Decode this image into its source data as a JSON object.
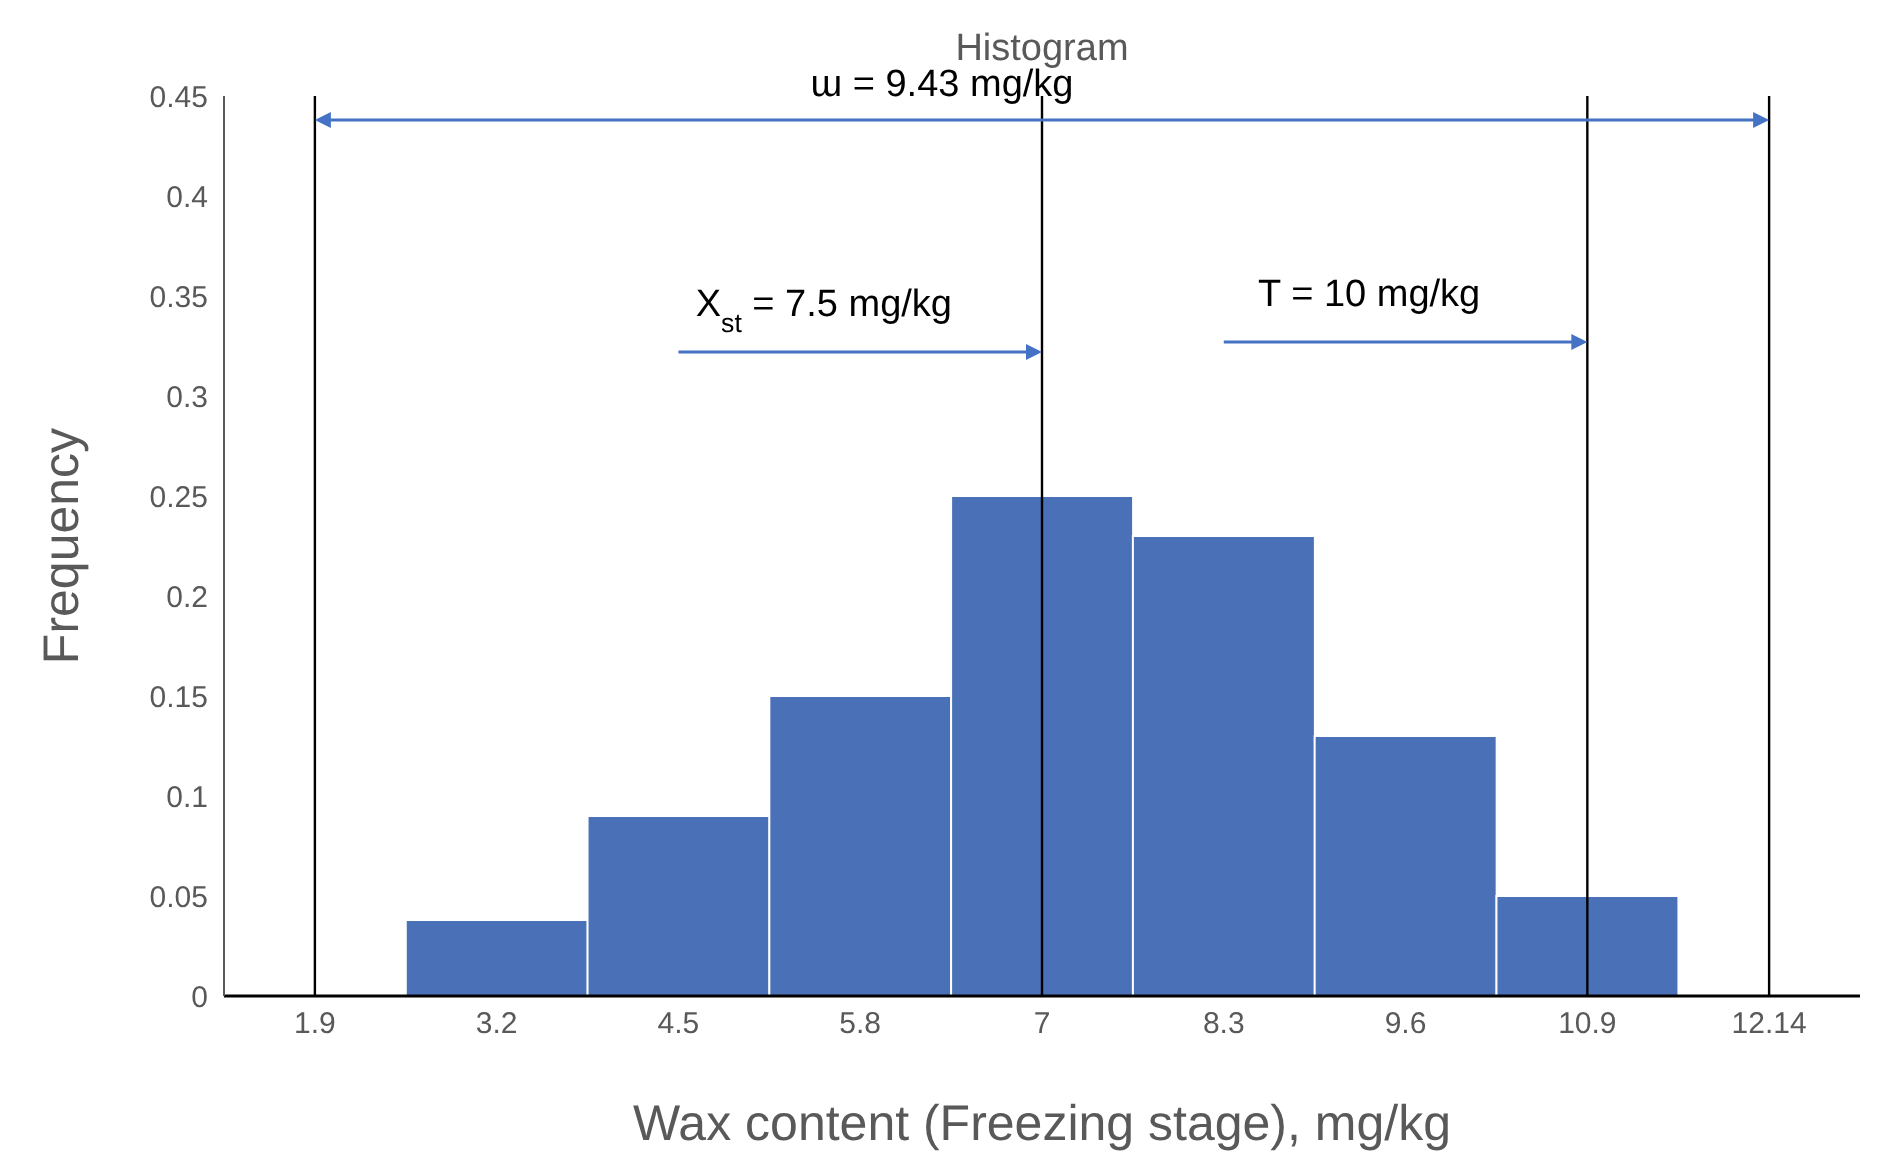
{
  "chart_data": {
    "type": "bar",
    "title": "Histogram",
    "xlabel": "Wax content (Freezing stage), mg/kg",
    "ylabel": "Frequency",
    "categories": [
      "1.9",
      "3.2",
      "4.5",
      "5.8",
      "7",
      "8.3",
      "9.6",
      "10.9",
      "12.14"
    ],
    "values": [
      0,
      0.038,
      0.09,
      0.15,
      0.25,
      0.23,
      0.13,
      0.05,
      0
    ],
    "color": "#4a71b8",
    "ylim": [
      0,
      0.45
    ],
    "yticks": [
      0,
      0.05,
      0.1,
      0.15,
      0.2,
      0.25,
      0.3,
      0.35,
      0.4,
      0.45
    ],
    "grid": false,
    "legend": false,
    "ref_lines": [
      {
        "axis": "x",
        "value": "1.9",
        "color": "#000000"
      },
      {
        "axis": "x",
        "value": "7",
        "color": "#000000"
      },
      {
        "axis": "x",
        "value": "10.9",
        "color": "#000000"
      },
      {
        "axis": "x",
        "value": "12.14",
        "color": "#000000"
      }
    ],
    "annotations": [
      "ɯ = 9.43 mg/kg",
      {
        "text": "X$_{st}$ = 7.5 mg/kg",
        "x": "7",
        "y": 0.34
      },
      {
        "text": "T = 10 mg/kg",
        "x": "10.9",
        "y": 0.345
      }
    ]
  }
}
